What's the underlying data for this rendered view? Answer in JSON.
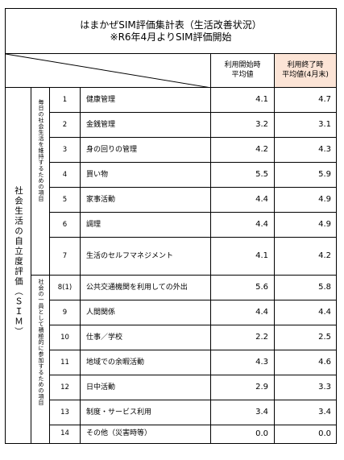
{
  "title": {
    "line1": "はまかぜSIM評価集計表（生活改善状況）",
    "line2": "※R6年4月よりSIM評価開始"
  },
  "header": {
    "start_avg": [
      "利用開始時",
      "平均値"
    ],
    "end_avg": [
      "利用終了時",
      "平均値(4月末)"
    ],
    "end_avg_bg": "#fce4d6"
  },
  "side_labels": {
    "outer": "社会生活の自立度評価（ＳＩＭ）",
    "group1": "毎日の社会生活を維持するための項目",
    "group2": "社会の一員として積極的に参加するための項目"
  },
  "rows": [
    {
      "no": "1",
      "item": "健康管理",
      "start": "4.1",
      "end": "4.7"
    },
    {
      "no": "2",
      "item": "金銭管理",
      "start": "3.2",
      "end": "3.1"
    },
    {
      "no": "3",
      "item": "身の回りの管理",
      "start": "4.2",
      "end": "4.3"
    },
    {
      "no": "4",
      "item": "買い物",
      "start": "5.5",
      "end": "5.9"
    },
    {
      "no": "5",
      "item": "家事活動",
      "start": "4.4",
      "end": "4.9"
    },
    {
      "no": "6",
      "item": "調理",
      "start": "4.4",
      "end": "4.9"
    },
    {
      "no": "7",
      "item": "生活のセルフマネジメント",
      "start": "4.1",
      "end": "4.2"
    },
    {
      "no": "8(1)",
      "item": "公共交通機関を利用しての外出",
      "start": "5.6",
      "end": "5.8"
    },
    {
      "no": "9",
      "item": "人間関係",
      "start": "4.4",
      "end": "4.4"
    },
    {
      "no": "10",
      "item": "仕事／学校",
      "start": "2.2",
      "end": "2.5"
    },
    {
      "no": "11",
      "item": "地域での余暇活動",
      "start": "4.3",
      "end": "4.6"
    },
    {
      "no": "12",
      "item": "日中活動",
      "start": "2.9",
      "end": "3.3"
    },
    {
      "no": "13",
      "item": "制度・サービス利用",
      "start": "3.4",
      "end": "3.4"
    },
    {
      "no": "14",
      "item": "その他（災害時等）",
      "start": "0.0",
      "end": "0.0"
    }
  ]
}
